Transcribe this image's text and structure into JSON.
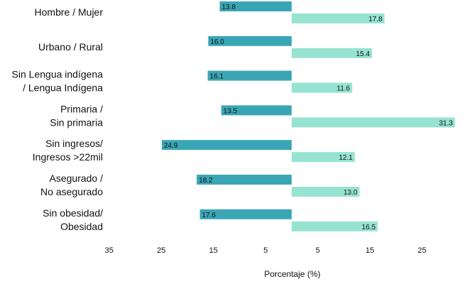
{
  "chart_data": {
    "type": "bar",
    "orientation": "horizontal",
    "layout": "diverging",
    "title": "",
    "xlabel": "Porcentaje (%)",
    "ylabel": "",
    "xlim": [
      -35,
      32
    ],
    "xticks": [
      -35,
      -25,
      -15,
      -5,
      5,
      15,
      25
    ],
    "xtick_labels": [
      "35",
      "25",
      "15",
      "5",
      "5",
      "15",
      "25"
    ],
    "grid": false,
    "legend": "none",
    "categories": [
      [
        "Hombre / Mujer"
      ],
      [
        "Urbano / Rural"
      ],
      [
        "Sin Lengua indígena",
        "/ Lengua Indígena"
      ],
      [
        "Primaria /",
        "Sin primaria"
      ],
      [
        "Sin ingresos/",
        "Ingresos >22mil"
      ],
      [
        "Asegurado /",
        "No asegurado"
      ],
      [
        "Sin obesidad/",
        "Obesidad"
      ]
    ],
    "series": [
      {
        "side": "left",
        "color": "#3aa6b5",
        "values": [
          13.8,
          16.0,
          16.1,
          13.5,
          24.9,
          18.2,
          17.6
        ],
        "labels": [
          "13.8",
          "16.0",
          "16.1",
          "13.5",
          "24.9",
          "18.2",
          "17.6"
        ]
      },
      {
        "side": "right",
        "color": "#96e3d1",
        "values": [
          17.8,
          15.4,
          11.6,
          31.3,
          12.1,
          13.0,
          16.5
        ],
        "labels": [
          "17.8",
          "15.4",
          "11.6",
          "31.3",
          "12.1",
          "13.0",
          "16.5"
        ]
      }
    ]
  }
}
